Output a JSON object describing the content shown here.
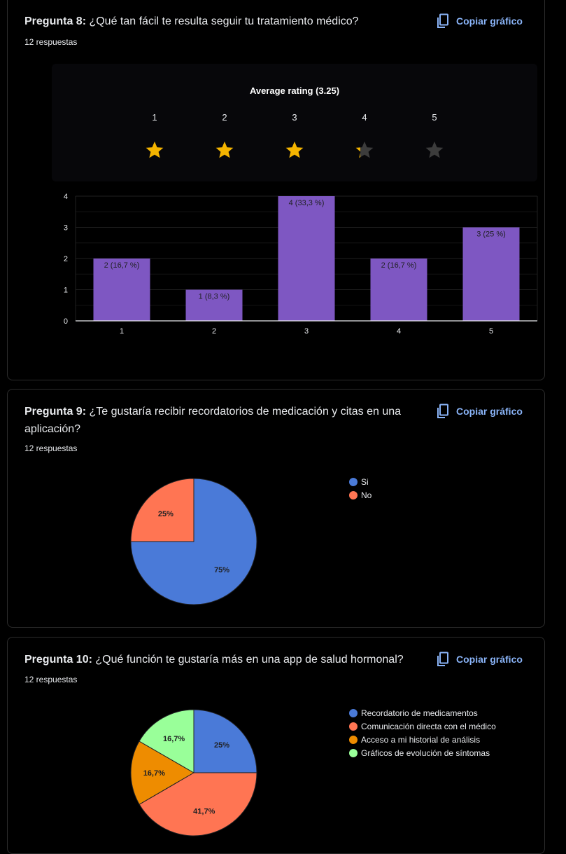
{
  "q8": {
    "prefix": "Pregunta 8:",
    "text": " ¿Qué tan fácil te resulta seguir tu tratamiento médico?",
    "responses": "12 respuestas",
    "copy_label": "Copiar gráfico",
    "rating": {
      "title": "Average rating (3.25)",
      "levels": [
        "1",
        "2",
        "3",
        "4",
        "5"
      ],
      "average": 3.25,
      "star_color": "#f4b400",
      "empty_color": "#3c3c3c"
    },
    "chart_data": {
      "type": "bar",
      "categories": [
        "1",
        "2",
        "3",
        "4",
        "5"
      ],
      "values": [
        2,
        1,
        4,
        2,
        3
      ],
      "labels": [
        "2 (16,7 %)",
        "1 (8,3 %)",
        "4 (33,3 %)",
        "2 (16,7 %)",
        "3 (25 %)"
      ],
      "yticks": [
        "0",
        "1",
        "2",
        "3",
        "4"
      ],
      "ylim": [
        0,
        4
      ],
      "color": "#7e57c2",
      "grid": true
    }
  },
  "q9": {
    "prefix": "Pregunta 9:",
    "text": " ¿Te gustaría recibir recordatorios de medicación y citas en una aplicación?",
    "responses": "12 respuestas",
    "copy_label": "Copiar gráfico",
    "chart_data": {
      "type": "pie",
      "slices": [
        {
          "name": "Si",
          "value": 75,
          "label": "75%",
          "color": "#4a7ad8"
        },
        {
          "name": "No",
          "value": 25,
          "label": "25%",
          "color": "#ff7553"
        }
      ],
      "legend": "right"
    }
  },
  "q10": {
    "prefix": "Pregunta 10:",
    "text": " ¿Qué función te gustaría más en una app de salud hormonal?",
    "responses": "12 respuestas",
    "copy_label": "Copiar gráfico",
    "chart_data": {
      "type": "pie",
      "slices": [
        {
          "name": "Recordatorio de medicamentos",
          "value": 25,
          "label": "25%",
          "color": "#4a7ad8"
        },
        {
          "name": "Comunicación directa con el médico",
          "value": 41.7,
          "label": "41,7%",
          "color": "#ff7553"
        },
        {
          "name": "Acceso a mi historial de análisis",
          "value": 16.7,
          "label": "16,7%",
          "color": "#ee8c00"
        },
        {
          "name": "Gráficos de evolución de síntomas",
          "value": 16.7,
          "label": "16,7%",
          "color": "#99ff99"
        }
      ],
      "legend": "right"
    }
  }
}
